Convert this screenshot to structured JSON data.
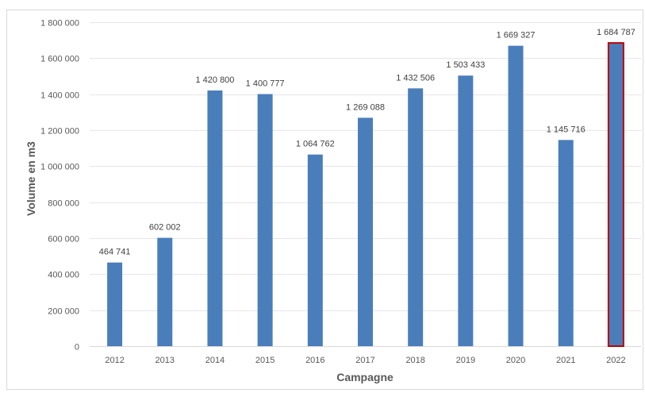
{
  "chart_data": {
    "type": "bar",
    "categories": [
      "2012",
      "2013",
      "2014",
      "2015",
      "2016",
      "2017",
      "2018",
      "2019",
      "2020",
      "2021",
      "2022"
    ],
    "values": [
      464741,
      602002,
      1420800,
      1400777,
      1064762,
      1269088,
      1432506,
      1503433,
      1669327,
      1145716,
      1684787
    ],
    "data_labels": [
      "464 741",
      "602 002",
      "1 420 800",
      "1 400 777",
      "1 064 762",
      "1 269 088",
      "1 432 506",
      "1 503 433",
      "1 669 327",
      "1 145 716",
      "1 684 787"
    ],
    "y_ticks": [
      0,
      200000,
      400000,
      600000,
      800000,
      1000000,
      1200000,
      1400000,
      1600000,
      1800000
    ],
    "y_tick_labels": [
      "0",
      "200 000",
      "400 000",
      "600 000",
      "800 000",
      "1 000 000",
      "1 200 000",
      "1 400 000",
      "1 600 000",
      "1 800 000"
    ],
    "xlabel": "Campagne",
    "ylabel": "Volume en m3",
    "ylim": [
      0,
      1800000
    ],
    "grid": true,
    "legend": "none",
    "bar_color": "#4a7ebb",
    "highlight": {
      "category": "2022",
      "outline_color": "#c00000"
    }
  }
}
